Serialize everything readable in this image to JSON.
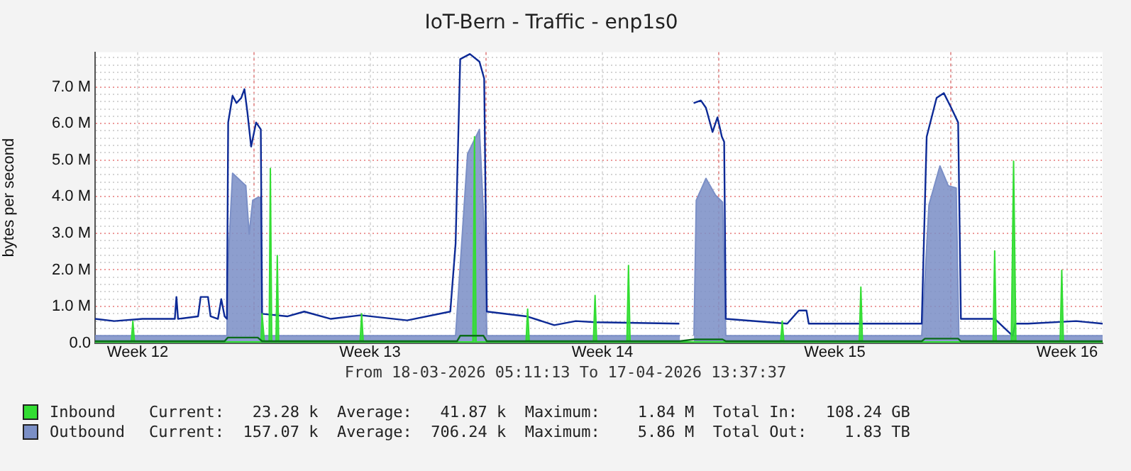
{
  "chart_data": {
    "type": "area",
    "title": "IoT-Bern - Traffic - enp1s0",
    "ylabel": "bytes per second",
    "xlim": [
      "2026-03-18T05:11",
      "2026-04-17T13:37"
    ],
    "xticks": [
      {
        "value": "2026-03-19T12:00",
        "label": "Week 12"
      },
      {
        "value": "2026-03-23T00:00",
        "label": null
      },
      {
        "value": "2026-03-26T12:00",
        "label": "Week 13"
      },
      {
        "value": "2026-03-30T00:00",
        "label": null
      },
      {
        "value": "2026-04-02T12:00",
        "label": "Week 14"
      },
      {
        "value": "2026-04-06T00:00",
        "label": null
      },
      {
        "value": "2026-04-09T12:00",
        "label": "Week 15"
      },
      {
        "value": "2026-04-13T00:00",
        "label": null
      },
      {
        "value": "2026-04-16T12:00",
        "label": "Week 16"
      }
    ],
    "ylim": [
      0,
      7.95
    ],
    "yticks": [
      {
        "value": 0,
        "label": "0.0"
      },
      {
        "value": 0.2,
        "label": null
      },
      {
        "value": 0.4,
        "label": null
      },
      {
        "value": 0.6,
        "label": null
      },
      {
        "value": 0.8,
        "label": null
      },
      {
        "value": 1,
        "label": "1.0 M"
      },
      {
        "value": 1.2,
        "label": null
      },
      {
        "value": 1.4,
        "label": null
      },
      {
        "value": 1.6,
        "label": null
      },
      {
        "value": 1.8,
        "label": null
      },
      {
        "value": 2,
        "label": "2.0 M"
      },
      {
        "value": 2.2,
        "label": null
      },
      {
        "value": 2.4,
        "label": null
      },
      {
        "value": 2.6,
        "label": null
      },
      {
        "value": 2.8,
        "label": null
      },
      {
        "value": 3,
        "label": "3.0 M"
      },
      {
        "value": 3.2,
        "label": null
      },
      {
        "value": 3.4,
        "label": null
      },
      {
        "value": 3.6,
        "label": null
      },
      {
        "value": 3.8,
        "label": null
      },
      {
        "value": 4,
        "label": "4.0 M"
      },
      {
        "value": 4.2,
        "label": null
      },
      {
        "value": 4.4,
        "label": null
      },
      {
        "value": 4.6,
        "label": null
      },
      {
        "value": 4.8,
        "label": null
      },
      {
        "value": 5,
        "label": "5.0 M"
      },
      {
        "value": 5.2,
        "label": null
      },
      {
        "value": 5.4,
        "label": null
      },
      {
        "value": 5.6,
        "label": null
      },
      {
        "value": 5.8,
        "label": null
      },
      {
        "value": 6,
        "label": "6.0 M"
      },
      {
        "value": 6.2,
        "label": null
      },
      {
        "value": 6.4,
        "label": null
      },
      {
        "value": 6.6,
        "label": null
      },
      {
        "value": 6.8,
        "label": null
      },
      {
        "value": 7,
        "label": "7.0 M"
      },
      {
        "value": 7.2,
        "label": null
      },
      {
        "value": 7.4,
        "label": null
      },
      {
        "value": 7.6,
        "label": null
      },
      {
        "value": 7.8,
        "label": null
      }
    ],
    "grid": true,
    "legend": "bottom",
    "annotations": [
      "From 18-03-2026 05:11:13 To 17-04-2026 13:37:37",
      "Current:   23.28 k  Average:   41.87 k  Maximum:    1.84 M  Total In:   108.24 GB",
      "Current:  157.07 k  Average:  706.24 k  Maximum:    5.86 M  Total Out:    1.83 TB"
    ],
    "series": [
      {
        "name": "Outbound",
        "color": "#7b8fc6",
        "x": [
          "2026-03-18T05:11",
          "2026-03-22T04:30",
          "2026-03-22T05:10",
          "2026-03-22T08:35",
          "2026-03-22T18:10",
          "2026-03-22T20:35",
          "2026-03-22T23:10",
          "2026-03-23T02:50",
          "2026-03-23T04:45",
          "2026-03-23T05:55",
          "2026-03-29T01:50",
          "2026-03-29T10:30",
          "2026-03-29T19:05",
          "2026-03-29T23:10",
          "2026-03-30T00:25",
          "2026-04-04T20:05",
          "2026-04-04T20:50",
          "2026-04-05T06:10",
          "2026-04-05T07:50",
          "2026-04-05T14:50",
          "2026-04-05T21:45",
          "2026-04-06T02:50",
          "2026-04-06T05:10",
          "2026-04-12T02:50",
          "2026-04-12T08:05",
          "2026-04-12T16:00",
          "2026-04-12T22:00",
          "2026-04-13T03:45",
          "2026-04-13T05:40",
          "2026-04-17T13:37"
        ],
        "values": [
          0.2,
          0.2,
          2.06,
          4.64,
          4.3,
          2.98,
          3.9,
          3.98,
          3.98,
          0.2,
          0.2,
          5.17,
          5.84,
          2.59,
          0.2,
          0.2,
          null,
          0.2,
          3.9,
          4.5,
          4.04,
          3.85,
          0.2,
          0.2,
          3.78,
          4.84,
          4.3,
          4.24,
          0.2,
          0.2
        ]
      },
      {
        "type": "line",
        "color": "#0d2a96",
        "x": [
          "2026-03-18T05:11",
          "2026-03-18T19:05",
          "2026-03-19T15:30",
          "2026-03-20T14:50",
          "2026-03-20T16:00",
          "2026-03-20T17:10",
          "2026-03-21T07:40",
          "2026-03-21T09:30",
          "2026-03-21T14:50",
          "2026-03-21T16:40",
          "2026-03-21T22:00",
          "2026-03-22T00:25",
          "2026-03-22T02:50",
          "2026-03-22T04:30",
          "2026-03-22T05:25",
          "2026-03-22T08:35",
          "2026-03-22T11:25",
          "2026-03-22T14:50",
          "2026-03-22T17:10",
          "2026-03-22T19:20",
          "2026-03-22T22:00",
          "2026-03-23T01:35",
          "2026-03-23T05:00",
          "2026-03-23T05:55",
          "2026-03-24T00:25",
          "2026-03-24T12:25",
          "2026-03-25T07:40",
          "2026-03-26T05:10",
          "2026-03-27T14:50",
          "2026-03-28T22:00",
          "2026-03-29T01:50",
          "2026-03-29T05:10",
          "2026-03-29T12:10",
          "2026-03-29T19:05",
          "2026-03-29T22:30",
          "2026-03-30T00:25",
          "2026-03-31T05:10",
          "2026-04-01T01:10",
          "2026-04-01T16:45",
          "2026-04-02T06:40",
          "2026-04-04T19:35",
          "2026-04-04T20:50",
          "2026-04-05T05:55",
          "2026-04-05T11:10",
          "2026-04-05T14:50",
          "2026-04-05T19:35",
          "2026-04-05T23:10",
          "2026-04-06T02:20",
          "2026-04-06T04:00",
          "2026-04-06T05:10",
          "2026-04-08T01:35",
          "2026-04-08T10:00",
          "2026-04-08T15:30",
          "2026-04-08T17:10",
          "2026-04-10T05:10",
          "2026-04-12T02:50",
          "2026-04-12T06:25",
          "2026-04-12T13:35",
          "2026-04-12T18:50",
          "2026-04-13T00:10",
          "2026-04-13T05:10",
          "2026-04-13T07:10",
          "2026-04-14T07:40",
          "2026-04-14T20:35",
          "2026-04-14T22:30",
          "2026-04-15T07:40",
          "2026-04-16T18:25",
          "2026-04-17T13:37"
        ],
        "values": [
          0.66,
          0.6,
          0.66,
          0.66,
          1.26,
          0.66,
          0.73,
          1.26,
          1.26,
          0.73,
          0.66,
          1.2,
          0.73,
          0.66,
          6.03,
          6.76,
          6.56,
          6.7,
          6.94,
          6.3,
          5.37,
          6.03,
          5.84,
          0.8,
          0.73,
          0.86,
          0.66,
          0.76,
          0.62,
          0.86,
          2.72,
          7.76,
          7.9,
          7.69,
          7.23,
          0.86,
          0.73,
          0.49,
          0.6,
          0.57,
          0.53,
          null,
          6.56,
          6.63,
          6.43,
          5.77,
          6.17,
          5.64,
          5.5,
          0.66,
          0.53,
          0.89,
          0.89,
          0.53,
          0.53,
          0.53,
          5.64,
          6.7,
          6.83,
          6.43,
          6.03,
          0.66,
          0.66,
          0.2,
          0.53,
          0.53,
          0.6,
          0.53
        ]
      },
      {
        "name": "Inbound",
        "color": "#33dd33",
        "x": [
          "2026-03-18T05:11",
          "2026-03-19T07:20",
          "2026-03-19T08:30",
          "2026-03-19T09:40",
          "2026-03-23T05:10",
          "2026-03-23T05:55",
          "2026-03-23T07:35",
          "2026-03-23T11:00",
          "2026-03-23T11:55",
          "2026-03-23T12:55",
          "2026-03-23T16:00",
          "2026-03-23T16:55",
          "2026-03-23T17:55",
          "2026-03-26T04:45",
          "2026-03-26T05:55",
          "2026-03-26T07:05",
          "2026-03-29T14:20",
          "2026-03-29T15:30",
          "2026-03-29T16:40",
          "2026-03-31T04:45",
          "2026-03-31T05:55",
          "2026-03-31T07:05",
          "2026-04-02T05:25",
          "2026-04-02T06:40",
          "2026-04-02T07:50",
          "2026-04-03T05:40",
          "2026-04-03T06:50",
          "2026-04-03T08:00",
          "2026-04-07T20:50",
          "2026-04-07T22:00",
          "2026-04-07T23:10",
          "2026-04-10T05:40",
          "2026-04-10T06:50",
          "2026-04-10T08:00",
          "2026-04-14T06:25",
          "2026-04-14T07:35",
          "2026-04-14T08:45",
          "2026-04-14T19:35",
          "2026-04-14T21:15",
          "2026-04-14T22:55",
          "2026-04-16T06:55",
          "2026-04-16T08:05",
          "2026-04-16T09:15",
          "2026-04-17T13:37"
        ],
        "values": [
          0.03,
          0.03,
          0.6,
          0.03,
          0.03,
          0.8,
          0.03,
          0.03,
          4.77,
          0.03,
          0.03,
          2.39,
          0.03,
          0.03,
          0.8,
          0.03,
          0.03,
          5.64,
          0.03,
          0.03,
          0.93,
          0.03,
          0.03,
          1.3,
          0.03,
          0.03,
          2.12,
          0.03,
          0.03,
          0.6,
          0.03,
          0.03,
          1.53,
          0.03,
          0.03,
          2.52,
          0.03,
          0.03,
          4.97,
          0.03,
          0.03,
          1.99,
          0.03,
          0.03
        ]
      },
      {
        "type": "line",
        "color": "#0b6b1b",
        "x": [
          "2026-03-18T05:11",
          "2026-03-22T02:50",
          "2026-03-22T05:10",
          "2026-03-23T02:50",
          "2026-03-23T05:55",
          "2026-03-29T02:50",
          "2026-03-29T05:10",
          "2026-03-29T22:00",
          "2026-03-30T00:25",
          "2026-04-04T19:35",
          "2026-04-05T06:10",
          "2026-04-06T02:50",
          "2026-04-06T05:10",
          "2026-04-12T02:50",
          "2026-04-12T05:10",
          "2026-04-13T05:10",
          "2026-04-13T07:10",
          "2026-04-17T13:37"
        ],
        "values": [
          0.05,
          0.05,
          0.15,
          0.15,
          0.05,
          0.05,
          0.2,
          0.2,
          0.05,
          0.05,
          0.1,
          0.1,
          0.05,
          0.05,
          0.12,
          0.12,
          0.05,
          0.05
        ]
      }
    ]
  }
}
